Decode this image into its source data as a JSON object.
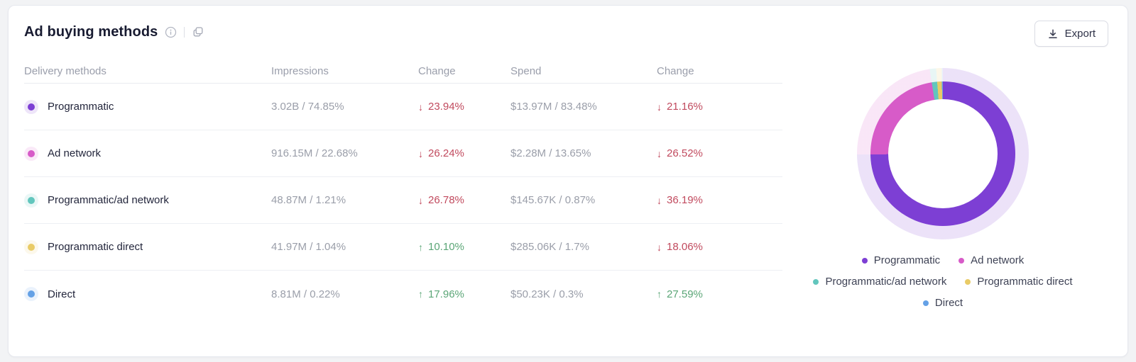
{
  "card": {
    "title": "Ad buying methods"
  },
  "icons": {
    "info": "info-circle",
    "copy": "copy-pages",
    "export": "download-arrow"
  },
  "export_button": {
    "label": "Export"
  },
  "colors": {
    "up": "#5ba677",
    "down": "#c14a5e"
  },
  "table": {
    "headers": [
      "Delivery methods",
      "Impressions",
      "Change",
      "Spend",
      "Change"
    ],
    "rows": [
      {
        "label": "Programmatic",
        "color": "#7d3fd4",
        "impressions": "3.02B / 74.85%",
        "impressions_change": {
          "dir": "down",
          "arrow": "↓",
          "value": "23.94%"
        },
        "spend": "$13.97M / 83.48%",
        "spend_change": {
          "dir": "down",
          "arrow": "↓",
          "value": "21.16%"
        }
      },
      {
        "label": "Ad network",
        "color": "#d75bc8",
        "impressions": "916.15M / 22.68%",
        "impressions_change": {
          "dir": "down",
          "arrow": "↓",
          "value": "26.24%"
        },
        "spend": "$2.28M / 13.65%",
        "spend_change": {
          "dir": "down",
          "arrow": "↓",
          "value": "26.52%"
        }
      },
      {
        "label": "Programmatic/ad network",
        "color": "#62c6bd",
        "impressions": "48.87M / 1.21%",
        "impressions_change": {
          "dir": "down",
          "arrow": "↓",
          "value": "26.78%"
        },
        "spend": "$145.67K / 0.87%",
        "spend_change": {
          "dir": "down",
          "arrow": "↓",
          "value": "36.19%"
        }
      },
      {
        "label": "Programmatic direct",
        "color": "#e9cb66",
        "impressions": "41.97M / 1.04%",
        "impressions_change": {
          "dir": "up",
          "arrow": "↑",
          "value": "10.10%"
        },
        "spend": "$285.06K / 1.7%",
        "spend_change": {
          "dir": "down",
          "arrow": "↓",
          "value": "18.06%"
        }
      },
      {
        "label": "Direct",
        "color": "#64a1e6",
        "impressions": "8.81M / 0.22%",
        "impressions_change": {
          "dir": "up",
          "arrow": "↑",
          "value": "17.96%"
        },
        "spend": "$50.23K / 0.3%",
        "spend_change": {
          "dir": "up",
          "arrow": "↑",
          "value": "27.59%"
        }
      }
    ]
  },
  "chart_data": {
    "type": "pie",
    "donut": true,
    "title": "Ad buying methods — share of impressions",
    "categories": [
      "Programmatic",
      "Ad network",
      "Programmatic/ad network",
      "Programmatic direct",
      "Direct"
    ],
    "values": [
      74.85,
      22.68,
      1.21,
      1.04,
      0.22
    ],
    "unit": "%",
    "colors": [
      "#7d3fd4",
      "#d75bc8",
      "#62c6bd",
      "#e9cb66",
      "#64a1e6"
    ],
    "start_angle_deg": 0,
    "direction": "clockwise",
    "legend_position": "bottom"
  }
}
